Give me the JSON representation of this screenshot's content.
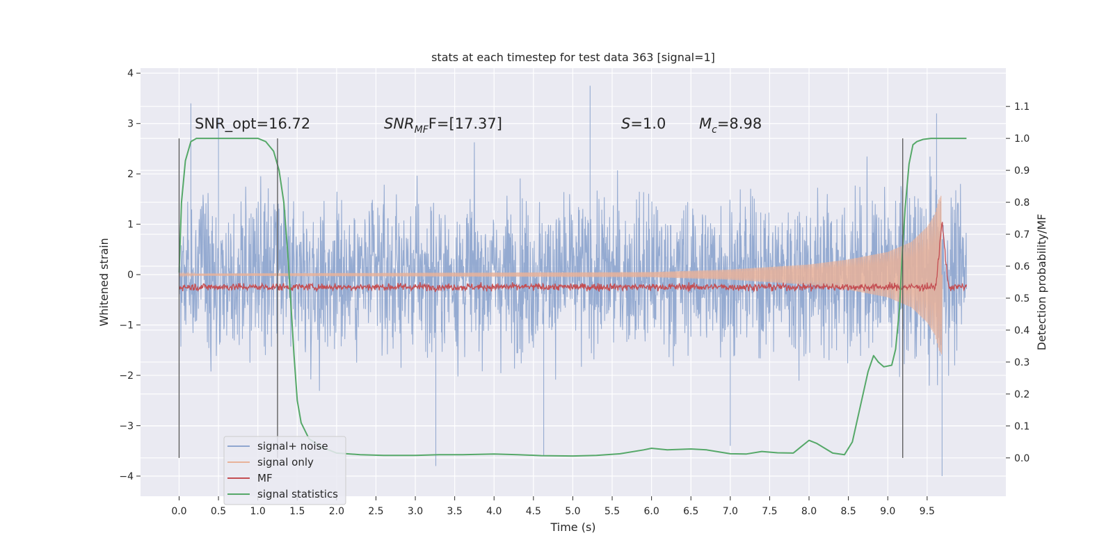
{
  "chart_data": {
    "type": "line",
    "title": "stats at each timestep for test data 363 [signal=1]",
    "xlabel": "Time (s)",
    "ylabel": "Whitened strain",
    "y2label": "Detection probability/MF",
    "xlim": [
      -0.49,
      10.5
    ],
    "ylim": [
      -4.4,
      4.1
    ],
    "y2lim": [
      -0.12,
      1.22
    ],
    "xticks": [
      0.0,
      0.5,
      1.0,
      1.5,
      2.0,
      2.5,
      3.0,
      3.5,
      4.0,
      4.5,
      5.0,
      5.5,
      6.0,
      6.5,
      7.0,
      7.5,
      8.0,
      8.5,
      9.0,
      9.5
    ],
    "xtick_labels": [
      "0.0",
      "0.5",
      "1.0",
      "1.5",
      "2.0",
      "2.5",
      "3.0",
      "3.5",
      "4.0",
      "4.5",
      "5.0",
      "5.5",
      "6.0",
      "6.5",
      "7.0",
      "7.5",
      "8.0",
      "8.5",
      "9.0",
      "9.5"
    ],
    "yticks": [
      4,
      3,
      2,
      1,
      0,
      -1,
      -2,
      -3,
      -4
    ],
    "ytick_labels": [
      "4",
      "3",
      "2",
      "1",
      "0",
      "−1",
      "−2",
      "−3",
      "−4"
    ],
    "y2ticks": [
      1.1,
      1.0,
      0.9,
      0.8,
      0.7,
      0.6,
      0.5,
      0.4,
      0.3,
      0.2,
      0.1,
      0.0
    ],
    "y2tick_labels": [
      "1.1",
      "1.0",
      "0.9",
      "0.8",
      "0.7",
      "0.6",
      "0.5",
      "0.4",
      "0.3",
      "0.2",
      "0.1",
      "0.0"
    ],
    "grid": true,
    "legend_position": "lower-left",
    "annotations": {
      "snr_opt": "SNR_opt=16.72",
      "snr_mf_main": "SNR",
      "snr_mf_sub": "MF",
      "snr_mf_rest": "F=[17.37]",
      "s_main": "S",
      "s_rest": "=1.0",
      "mc_main": "M",
      "mc_sub": "c",
      "mc_rest": "=8.98"
    },
    "vlines_s": [
      0.0,
      1.25,
      9.19
    ],
    "series": [
      {
        "name": "signal+ noise",
        "color": "#8fa6cf",
        "kind": "noise-band",
        "t_range": [
          0.0,
          10.0
        ],
        "envelope_typical": [
          -1.6,
          1.6
        ],
        "peak_min": -4.0,
        "peak_max": 3.75
      },
      {
        "name": "signal only",
        "color": "#e8b29a",
        "kind": "chirp-envelope",
        "x": [
          0.0,
          6.0,
          7.0,
          8.0,
          8.5,
          9.0,
          9.3,
          9.5,
          9.6,
          9.65,
          9.69
        ],
        "amplitude": [
          0.02,
          0.05,
          0.1,
          0.2,
          0.3,
          0.45,
          0.65,
          0.95,
          1.2,
          1.5,
          1.6
        ]
      },
      {
        "name": "MF",
        "color": "#c44e52",
        "kind": "detection",
        "baseline_y2": 0.535,
        "peak_x": 9.69,
        "peak_y2": 0.74
      },
      {
        "name": "signal statistics",
        "color": "#55a868",
        "x": [
          0.0,
          0.03,
          0.08,
          0.15,
          0.22,
          0.35,
          0.55,
          0.8,
          1.0,
          1.1,
          1.2,
          1.27,
          1.33,
          1.38,
          1.42,
          1.46,
          1.5,
          1.55,
          1.65,
          1.8,
          2.0,
          2.3,
          2.6,
          3.0,
          3.3,
          3.6,
          4.0,
          4.3,
          4.6,
          5.0,
          5.3,
          5.6,
          5.9,
          6.0,
          6.2,
          6.5,
          6.7,
          7.0,
          7.2,
          7.4,
          7.6,
          7.8,
          7.9,
          8.0,
          8.1,
          8.3,
          8.45,
          8.55,
          8.65,
          8.75,
          8.82,
          8.88,
          8.95,
          9.05,
          9.1,
          9.15,
          9.18,
          9.22,
          9.27,
          9.32,
          9.37,
          9.45,
          9.55,
          9.7,
          10.0
        ],
        "y": [
          0.58,
          0.8,
          0.93,
          0.99,
          1.0,
          1.0,
          1.0,
          1.0,
          1.0,
          0.99,
          0.96,
          0.9,
          0.8,
          0.64,
          0.48,
          0.32,
          0.18,
          0.11,
          0.06,
          0.035,
          0.015,
          0.01,
          0.008,
          0.008,
          0.01,
          0.01,
          0.012,
          0.01,
          0.007,
          0.006,
          0.008,
          0.013,
          0.025,
          0.03,
          0.025,
          0.028,
          0.025,
          0.013,
          0.012,
          0.02,
          0.016,
          0.015,
          0.035,
          0.055,
          0.045,
          0.015,
          0.01,
          0.05,
          0.16,
          0.27,
          0.32,
          0.3,
          0.285,
          0.29,
          0.34,
          0.47,
          0.62,
          0.78,
          0.92,
          0.98,
          0.99,
          0.997,
          1.0,
          1.0,
          1.0
        ]
      }
    ]
  }
}
